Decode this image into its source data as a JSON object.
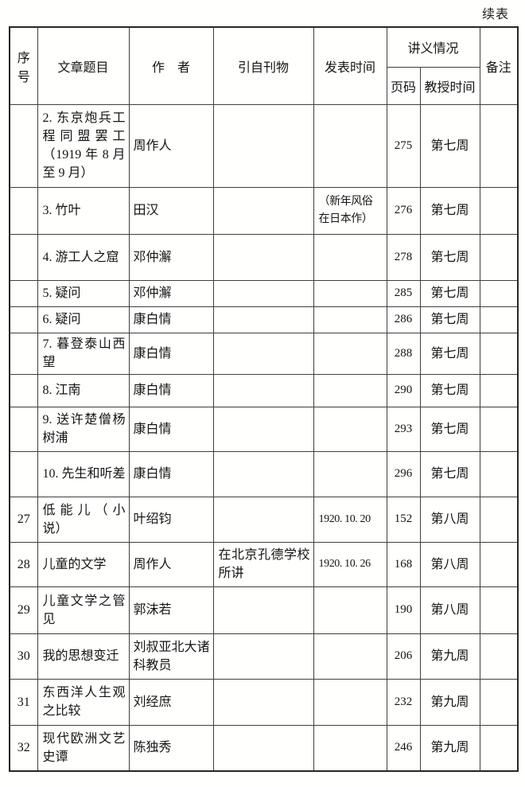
{
  "page": {
    "continued_label": "续表"
  },
  "table": {
    "header": {
      "col_no": "序号",
      "col_title": "文章题目",
      "col_author": "作　者",
      "col_source": "引自刊物",
      "col_date": "发表时间",
      "col_lecture": "讲义情况",
      "col_page": "页码",
      "col_teach_time": "教授时间",
      "col_remark": "备注"
    },
    "rows": [
      {
        "no": "",
        "title": "2. 东京炮兵工程同盟罢工（1919 年 8 月至 9 月）",
        "author": "周作人",
        "source": "",
        "date": "",
        "page": "275",
        "teach_time": "第七周",
        "remark": ""
      },
      {
        "no": "",
        "title": "3. 竹叶",
        "author": "田汉",
        "source": "",
        "date": "（新年风俗在日本作）",
        "page": "276",
        "teach_time": "第七周",
        "remark": ""
      },
      {
        "no": "",
        "title": "4. 游工人之窟",
        "author": "邓仲澥",
        "source": "",
        "date": "",
        "page": "278",
        "teach_time": "第七周",
        "remark": ""
      },
      {
        "no": "",
        "title": "5. 疑问",
        "author": "邓仲澥",
        "source": "",
        "date": "",
        "page": "285",
        "teach_time": "第七周",
        "remark": ""
      },
      {
        "no": "",
        "title": "6. 疑问",
        "author": "康白情",
        "source": "",
        "date": "",
        "page": "286",
        "teach_time": "第七周",
        "remark": ""
      },
      {
        "no": "",
        "title": "7. 暮登泰山西望",
        "author": "康白情",
        "source": "",
        "date": "",
        "page": "288",
        "teach_time": "第七周",
        "remark": ""
      },
      {
        "no": "",
        "title": "8. 江南",
        "author": "康白情",
        "source": "",
        "date": "",
        "page": "290",
        "teach_time": "第七周",
        "remark": ""
      },
      {
        "no": "",
        "title": "9. 送许楚僧杨树浦",
        "author": "康白情",
        "source": "",
        "date": "",
        "page": "293",
        "teach_time": "第七周",
        "remark": ""
      },
      {
        "no": "",
        "title": "10. 先生和听差",
        "author": "康白情",
        "source": "",
        "date": "",
        "page": "296",
        "teach_time": "第七周",
        "remark": ""
      },
      {
        "no": "27",
        "title": "低能儿（小说）",
        "author": "叶绍钧",
        "source": "",
        "date": "1920. 10. 20",
        "page": "152",
        "teach_time": "第八周",
        "remark": ""
      },
      {
        "no": "28",
        "title": "儿童的文学",
        "author": "周作人",
        "source": "在北京孔德学校所讲",
        "date": "1920. 10. 26",
        "page": "168",
        "teach_time": "第八周",
        "remark": ""
      },
      {
        "no": "29",
        "title": "儿童文学之管见",
        "author": "郭沫若",
        "source": "",
        "date": "",
        "page": "190",
        "teach_time": "第八周",
        "remark": ""
      },
      {
        "no": "30",
        "title": "我的思想变迁",
        "author": "刘叔亚北大诸科教员",
        "source": "",
        "date": "",
        "page": "206",
        "teach_time": "第九周",
        "remark": ""
      },
      {
        "no": "31",
        "title": "东西洋人生观之比较",
        "author": "刘经庶",
        "source": "",
        "date": "",
        "page": "232",
        "teach_time": "第九周",
        "remark": ""
      },
      {
        "no": "32",
        "title": "现代欧洲文艺史谭",
        "author": "陈独秀",
        "source": "",
        "date": "",
        "page": "246",
        "teach_time": "第九周",
        "remark": ""
      }
    ]
  }
}
